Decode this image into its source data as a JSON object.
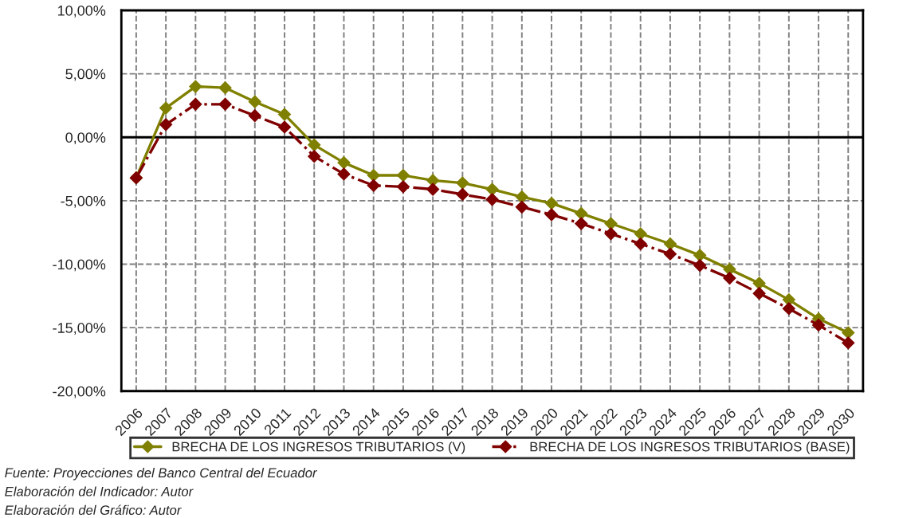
{
  "chart_data": {
    "type": "line",
    "categories": [
      "2006",
      "2007",
      "2008",
      "2009",
      "2010",
      "2011",
      "2012",
      "2013",
      "2014",
      "2015",
      "2016",
      "2017",
      "2018",
      "2019",
      "2020",
      "2021",
      "2022",
      "2023",
      "2024",
      "2025",
      "2026",
      "2027",
      "2028",
      "2029",
      "2030"
    ],
    "series": [
      {
        "name": "BRECHA DE LOS INGRESOS TRIBUTARIOS (V)",
        "color": "#808000",
        "line_style": "solid",
        "values": [
          -3.2,
          2.3,
          4.0,
          3.9,
          2.8,
          1.8,
          -0.6,
          -2.0,
          -3.0,
          -3.0,
          -3.4,
          -3.6,
          -4.1,
          -4.7,
          -5.2,
          -6.0,
          -6.8,
          -7.6,
          -8.4,
          -9.3,
          -10.4,
          -11.5,
          -12.8,
          -14.3,
          -15.4
        ]
      },
      {
        "name": "BRECHA DE LOS INGRESOS TRIBUTARIOS (BASE)",
        "color": "#800000",
        "line_style": "dashdot",
        "values": [
          -3.2,
          1.0,
          2.6,
          2.6,
          1.7,
          0.8,
          -1.5,
          -2.9,
          -3.8,
          -3.9,
          -4.1,
          -4.5,
          -4.9,
          -5.5,
          -6.1,
          -6.8,
          -7.6,
          -8.4,
          -9.2,
          -10.1,
          -11.1,
          -12.3,
          -13.5,
          -14.8,
          -16.2
        ]
      }
    ],
    "ylim": [
      -20,
      10
    ],
    "yticks": [
      {
        "value": -20,
        "label": "-20,00%"
      },
      {
        "value": -15,
        "label": "-15,00%"
      },
      {
        "value": -10,
        "label": "-10,00%"
      },
      {
        "value": -5,
        "label": "-5,00%"
      },
      {
        "value": 0,
        "label": "0,00%"
      },
      {
        "value": 5,
        "label": "5,00%"
      },
      {
        "value": 10,
        "label": "10,00%"
      }
    ],
    "ref_lines": [
      {
        "axis": "y",
        "value": 0,
        "color": "#000000",
        "line_style": "solid"
      }
    ],
    "grid": true,
    "legend": "bottom",
    "marker": "diamond",
    "annotations": [
      "Fuente: Proyecciones del Banco Central del Ecuador",
      "Elaboración del Indicador: Autor",
      "Elaboración del Gráfico: Autor"
    ]
  }
}
